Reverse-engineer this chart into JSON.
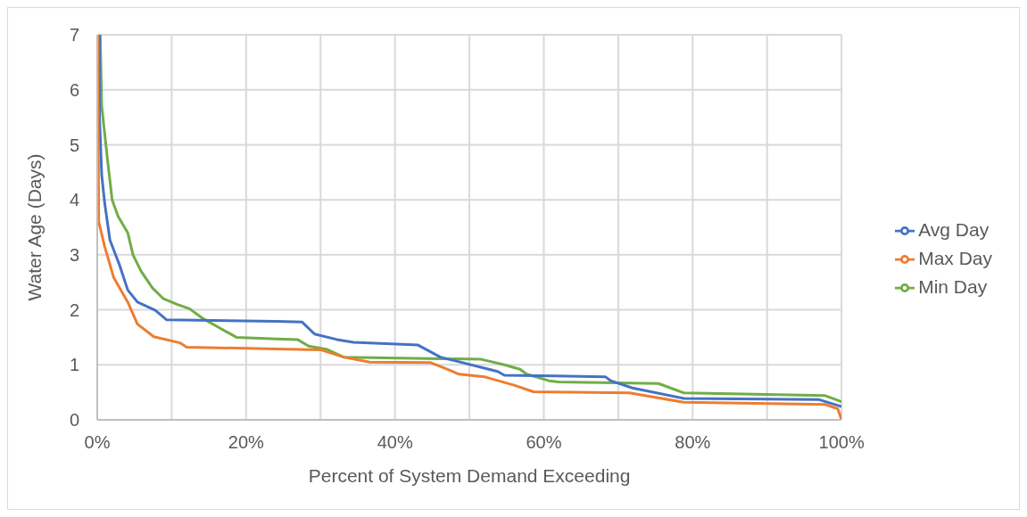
{
  "chart_data": {
    "type": "line",
    "xlabel": "Percent of System Demand Exceeding",
    "ylabel": "Water Age (Days)",
    "xlim": [
      0,
      100
    ],
    "xticks": [
      {
        "value": 0,
        "label": "0%"
      },
      {
        "value": 10,
        "label": null
      },
      {
        "value": 20,
        "label": "20%"
      },
      {
        "value": 30,
        "label": null
      },
      {
        "value": 40,
        "label": "40%"
      },
      {
        "value": 50,
        "label": null
      },
      {
        "value": 60,
        "label": "60%"
      },
      {
        "value": 70,
        "label": null
      },
      {
        "value": 80,
        "label": "80%"
      },
      {
        "value": 90,
        "label": null
      },
      {
        "value": 100,
        "label": "100%"
      }
    ],
    "ylim": [
      0,
      7
    ],
    "yticks": [
      0,
      1,
      2,
      3,
      4,
      5,
      6,
      7
    ],
    "grid": true,
    "legend": "right",
    "marker": "none",
    "line_style": "solid",
    "series": [
      {
        "name": "Min Day",
        "color": "#70ad47",
        "x": [
          0.4,
          0.6,
          1.0,
          1.4,
          2.0,
          2.8,
          4.1,
          4.8,
          5.9,
          7.4,
          8.9,
          10.7,
          12.4,
          14.1,
          16.3,
          18.7,
          24.1,
          26.9,
          28.4,
          30.9,
          33.1,
          51.6,
          54.7,
          56.8,
          57.7,
          60.7,
          62.0,
          75.4,
          78.8,
          97.8,
          100
        ],
        "values": [
          7,
          5.7,
          5.2,
          4.7,
          4.0,
          3.7,
          3.4,
          3.0,
          2.7,
          2.4,
          2.2,
          2.1,
          2.02,
          1.85,
          1.68,
          1.5,
          1.47,
          1.46,
          1.34,
          1.28,
          1.14,
          1.1,
          1.0,
          0.92,
          0.83,
          0.71,
          0.69,
          0.66,
          0.49,
          0.44,
          0.33
        ]
      },
      {
        "name": "Avg Day",
        "color": "#4472c4",
        "x": [
          0.3,
          0.3,
          0.6,
          1.0,
          1.7,
          3.0,
          4.1,
          5.4,
          7.8,
          9.3,
          24.1,
          27.5,
          29.2,
          32.2,
          34.4,
          43.1,
          46.1,
          53.8,
          54.7,
          61.6,
          68.3,
          69.0,
          71.9,
          78.8,
          96.9,
          100
        ],
        "values": [
          7,
          5.5,
          4.45,
          3.94,
          3.27,
          2.81,
          2.36,
          2.14,
          1.99,
          1.82,
          1.79,
          1.78,
          1.56,
          1.46,
          1.41,
          1.36,
          1.14,
          0.88,
          0.81,
          0.8,
          0.78,
          0.71,
          0.58,
          0.39,
          0.37,
          0.24
        ]
      },
      {
        "name": "Max Day",
        "color": "#ed7d31",
        "x": [
          0.1,
          0.1,
          0.2,
          1.0,
          2.2,
          4.1,
          5.4,
          7.6,
          11.1,
          12.0,
          24.1,
          30.1,
          33.1,
          36.6,
          44.8,
          47.0,
          48.6,
          52.1,
          56.0,
          58.6,
          71.5,
          78.8,
          97.8,
          99.5,
          100
        ],
        "values": [
          7,
          5.92,
          3.6,
          3.15,
          2.59,
          2.14,
          1.74,
          1.51,
          1.4,
          1.32,
          1.29,
          1.27,
          1.14,
          1.05,
          1.04,
          0.92,
          0.83,
          0.78,
          0.63,
          0.51,
          0.49,
          0.32,
          0.28,
          0.2,
          0
        ]
      }
    ]
  }
}
